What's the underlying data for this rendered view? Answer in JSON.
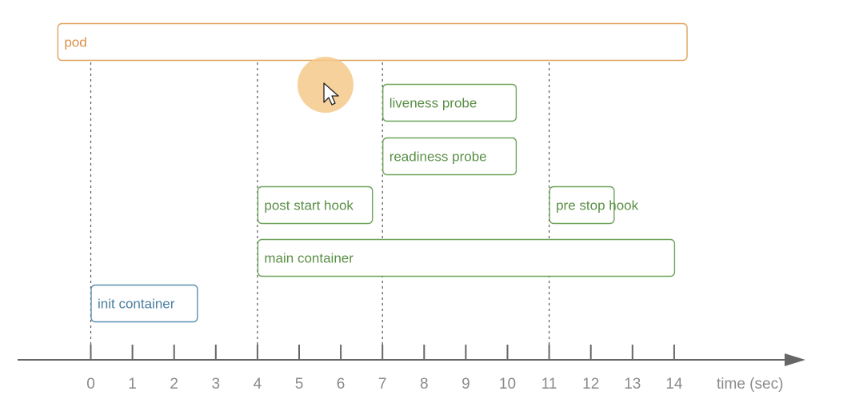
{
  "diagram": {
    "axis_title": "time (sec)",
    "ticks": [
      "0",
      "1",
      "2",
      "3",
      "4",
      "5",
      "6",
      "7",
      "8",
      "9",
      "10",
      "11",
      "12",
      "13",
      "14"
    ],
    "guide_lines_at": [
      0,
      4,
      7,
      11
    ],
    "bars": [
      {
        "id": "pod",
        "label": "pod",
        "start": -0.8,
        "end": 14.3,
        "row": 0,
        "color": "#e0a25e",
        "text_color": "#d8914a"
      },
      {
        "id": "liveness-probe",
        "label": "liveness probe",
        "start": 7,
        "end": 10.2,
        "row": 1,
        "color": "#6ea35a",
        "text_color": "#5a8f46"
      },
      {
        "id": "readiness-probe",
        "label": "readiness probe",
        "start": 7,
        "end": 10.2,
        "row": 2,
        "color": "#6ea35a",
        "text_color": "#5a8f46"
      },
      {
        "id": "post-start-hook",
        "label": "post start hook",
        "start": 4,
        "end": 6.75,
        "row": 3,
        "color": "#6ea35a",
        "text_color": "#5a8f46"
      },
      {
        "id": "pre-stop-hook",
        "label": "pre stop hook",
        "start": 11,
        "end": 12.55,
        "row": 3,
        "color": "#6ea35a",
        "text_color": "#5a8f46"
      },
      {
        "id": "main-container",
        "label": "main container",
        "start": 4,
        "end": 14,
        "row": 4,
        "color": "#6ea35a",
        "text_color": "#5a8f46"
      },
      {
        "id": "init-container",
        "label": "init container",
        "start": 0,
        "end": 2.55,
        "row": 5,
        "color": "#5b8fb0",
        "text_color": "#4a7e9f"
      }
    ],
    "colors": {
      "axis": "#666666",
      "guide": "#555555",
      "cursor_halo": "#f5c98a"
    },
    "icons": {
      "cursor": "mouse-pointer-icon"
    }
  }
}
